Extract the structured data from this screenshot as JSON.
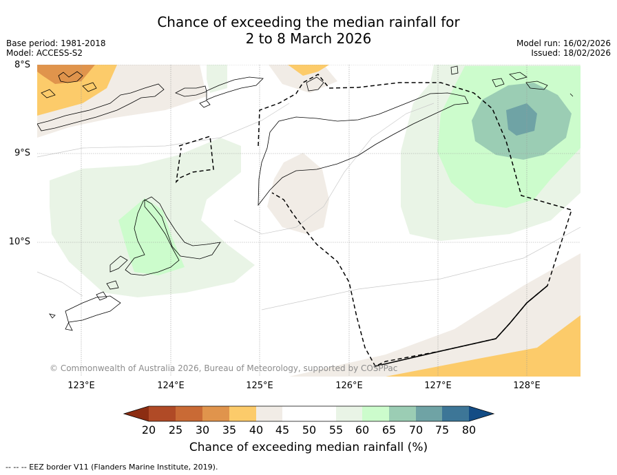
{
  "title_line1": "Chance of exceeding the median rainfall for",
  "title_line2": "2 to 8 March 2026",
  "base_period": "Base period: 1981-2018",
  "model": "Model: ACCESS-S2",
  "model_run": "Model run: 16/02/2026",
  "issued": "Issued: 18/02/2026",
  "lat_labels": [
    "8°S",
    "9°S",
    "10°S"
  ],
  "lon_labels": [
    "123°E",
    "124°E",
    "125°E",
    "126°E",
    "127°E",
    "128°E"
  ],
  "copyright": "© Commonwealth of Australia 2026, Bureau of Meteorology, supported by COSPPac",
  "colorbar": {
    "title": "Chance of exceeding median rainfall (%)",
    "ticks": [
      "20",
      "25",
      "30",
      "35",
      "40",
      "45",
      "50",
      "55",
      "60",
      "65",
      "70",
      "75",
      "80"
    ],
    "colors": [
      "#8c2d12",
      "#b04a26",
      "#c96a35",
      "#e0944c",
      "#fccb6a",
      "#f1ece6",
      "#ffffff",
      "#ffffff",
      "#e9f4e6",
      "#ccfccc",
      "#9bcdb4",
      "#6fa3a5",
      "#3d7697",
      "#134c85"
    ]
  },
  "footnote": "--  --  -- EEZ border V11 (Flanders Marine Institute, 2019)."
}
